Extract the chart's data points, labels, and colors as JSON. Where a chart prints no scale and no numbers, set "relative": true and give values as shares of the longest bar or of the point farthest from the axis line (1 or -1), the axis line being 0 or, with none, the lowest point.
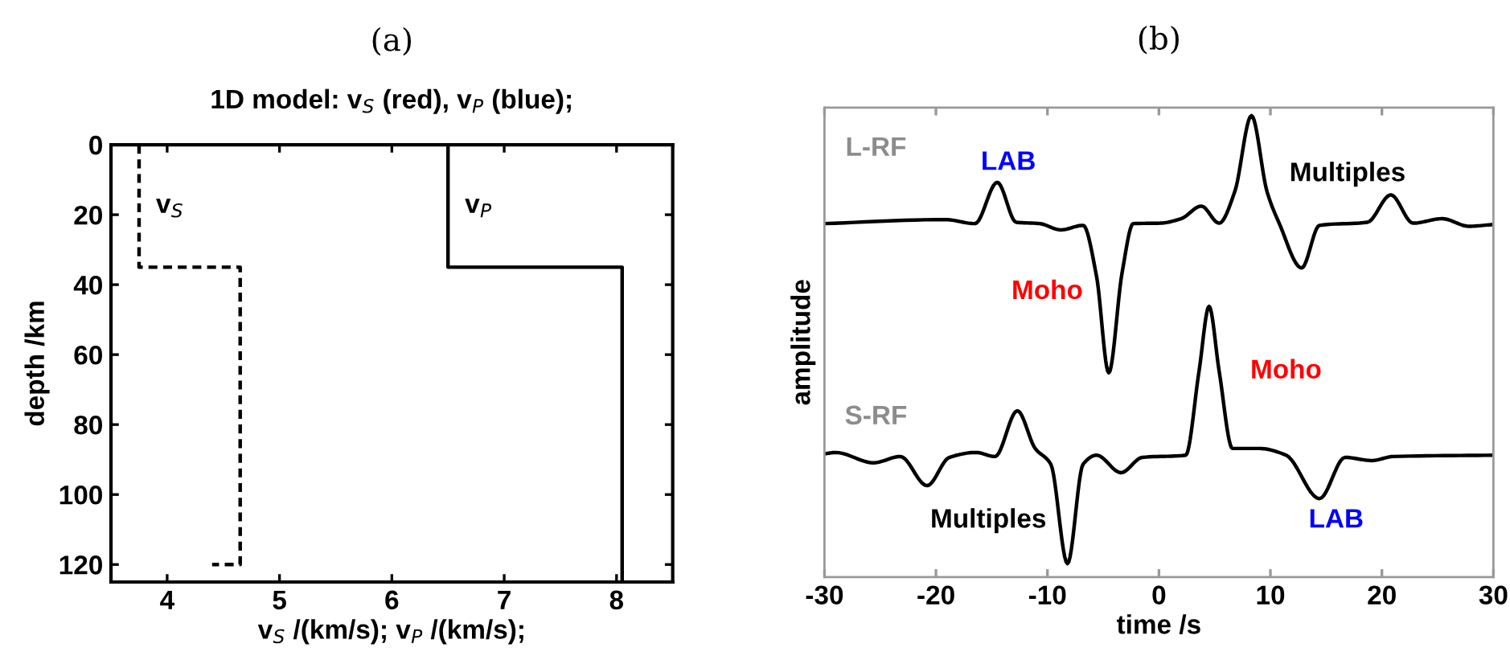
{
  "chart_data": [
    {
      "type": "line",
      "title": "(a)",
      "subtitle": "1D model: v$_{S}$ (red), v$_{P}$ (blue);",
      "xlabel": "v$_{S}$ /(km/s); v$_{P}$ /(km/s);",
      "ylabel": "depth /km",
      "xlim": [
        3.5,
        8.5
      ],
      "xticks": [
        4,
        5,
        6,
        7,
        8
      ],
      "ylim": [
        125,
        0
      ],
      "yticks": [
        0,
        20,
        40,
        60,
        80,
        100,
        120
      ],
      "grid": false,
      "series": [
        {
          "name": "v$_{S}$",
          "color": "#000000",
          "line_style": "dashed",
          "x": [
            3.75,
            3.75,
            4.65,
            4.65,
            4.4
          ],
          "values": [
            0,
            35,
            35,
            120,
            120
          ]
        },
        {
          "name": "v$_{P}$",
          "color": "#000000",
          "line_style": "solid",
          "x": [
            6.5,
            6.5,
            8.05,
            8.05
          ],
          "values": [
            0,
            35,
            35,
            125
          ]
        }
      ]
    },
    {
      "type": "line",
      "title": "(b)",
      "xlabel": "time /s",
      "ylabel": "amplitude",
      "relative": true,
      "tick_labels": "x",
      "xlim": [
        -30,
        30
      ],
      "xticks": [
        -30,
        -20,
        -10,
        0,
        10,
        20,
        30
      ],
      "grid": false,
      "series": [
        {
          "color": "#000000",
          "x": [
            -30,
            -19.2,
            -16.5,
            -14.5,
            -12.8,
            -10.7,
            -8.8,
            -6.8,
            -5.6,
            -4.5,
            -3.3,
            -2.3,
            0.1,
            2.0,
            3.8,
            5.4,
            6.8,
            8.3,
            9.7,
            10.8,
            12.8,
            14.4,
            18.7,
            20.8,
            22.8,
            25.4,
            27.8,
            30
          ],
          "values": [
            0.759,
            0.768,
            0.759,
            0.851,
            0.762,
            0.759,
            0.745,
            0.755,
            0.642,
            0.426,
            0.65,
            0.759,
            0.76,
            0.77,
            0.798,
            0.76,
            0.83,
            1.0,
            0.83,
            0.759,
            0.66,
            0.755,
            0.762,
            0.823,
            0.76,
            0.77,
            0.753,
            0.757
          ]
        },
        {
          "color": "#000000",
          "x": [
            -30,
            -29,
            -25.6,
            -23.2,
            -20.8,
            -18.8,
            -16.4,
            -14.7,
            -12.7,
            -11.1,
            -9.7,
            -8.2,
            -6.8,
            -5.6,
            -3.4,
            -1.5,
            2.4,
            3.6,
            4.5,
            5.4,
            6.6,
            9.0,
            11.4,
            14.4,
            16.7,
            19.1,
            21,
            30
          ],
          "values": [
            0.245,
            0.248,
            0.225,
            0.239,
            0.174,
            0.237,
            0.248,
            0.239,
            0.341,
            0.257,
            0.222,
            0.0,
            0.222,
            0.242,
            0.203,
            0.237,
            0.242,
            0.43,
            0.574,
            0.43,
            0.257,
            0.257,
            0.242,
            0.145,
            0.237,
            0.23,
            0.239,
            0.242
          ]
        }
      ],
      "annotations": [
        "L-RF",
        "LAB",
        "Multiples",
        "Moho",
        "S-RF",
        "Moho",
        "Multiples",
        "LAB"
      ]
    }
  ]
}
